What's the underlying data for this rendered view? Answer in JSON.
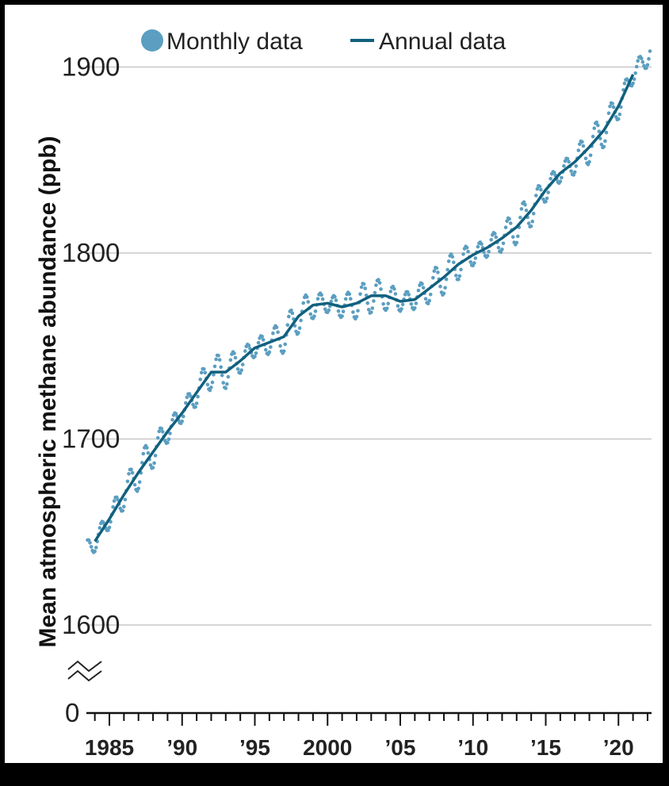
{
  "chart_data": {
    "type": "line",
    "ylabel": "Mean atmospheric methane abundance (ppb)",
    "xlabel": "",
    "y_ticks": [
      1600,
      1700,
      1800,
      1900
    ],
    "y_break_tick": 0,
    "ylim": [
      1600,
      1915
    ],
    "xlim": [
      1983.0,
      2022.3
    ],
    "x_tick_labels": [
      {
        "x": 1985,
        "label": "1985"
      },
      {
        "x": 1990,
        "label": "’90"
      },
      {
        "x": 1995,
        "label": "’95"
      },
      {
        "x": 2000,
        "label": "2000"
      },
      {
        "x": 2005,
        "label": "’05"
      },
      {
        "x": 2010,
        "label": "’10"
      },
      {
        "x": 2015,
        "label": "’15"
      },
      {
        "x": 2020,
        "label": "’20"
      }
    ],
    "legend": {
      "placement": "top",
      "items": [
        "Monthly data",
        "Annual data"
      ]
    },
    "colors": {
      "monthly": "#5b9ec1",
      "annual": "#11607e",
      "grid": "#c8c8c8"
    },
    "series": [
      {
        "name": "Annual data",
        "x": [
          1984,
          1985,
          1986,
          1987,
          1988,
          1989,
          1990,
          1991,
          1992,
          1993,
          1994,
          1995,
          1996,
          1997,
          1998,
          1999,
          2000,
          2001,
          2002,
          2003,
          2004,
          2005,
          2006,
          2007,
          2008,
          2009,
          2010,
          2011,
          2012,
          2013,
          2014,
          2015,
          2016,
          2017,
          2018,
          2019,
          2020,
          2021
        ],
        "values": [
          1645,
          1657,
          1670,
          1682,
          1693,
          1704,
          1714,
          1725,
          1736,
          1736,
          1742,
          1749,
          1752,
          1755,
          1766,
          1772,
          1773,
          1771,
          1773,
          1777,
          1777,
          1774,
          1775,
          1781,
          1787,
          1794,
          1799,
          1803,
          1808,
          1814,
          1823,
          1834,
          1843,
          1849,
          1857,
          1866,
          1879,
          1896
        ]
      },
      {
        "name": "Monthly data",
        "seasonal_amplitude_ppb": 7,
        "extends_to": 2022.2
      }
    ]
  }
}
